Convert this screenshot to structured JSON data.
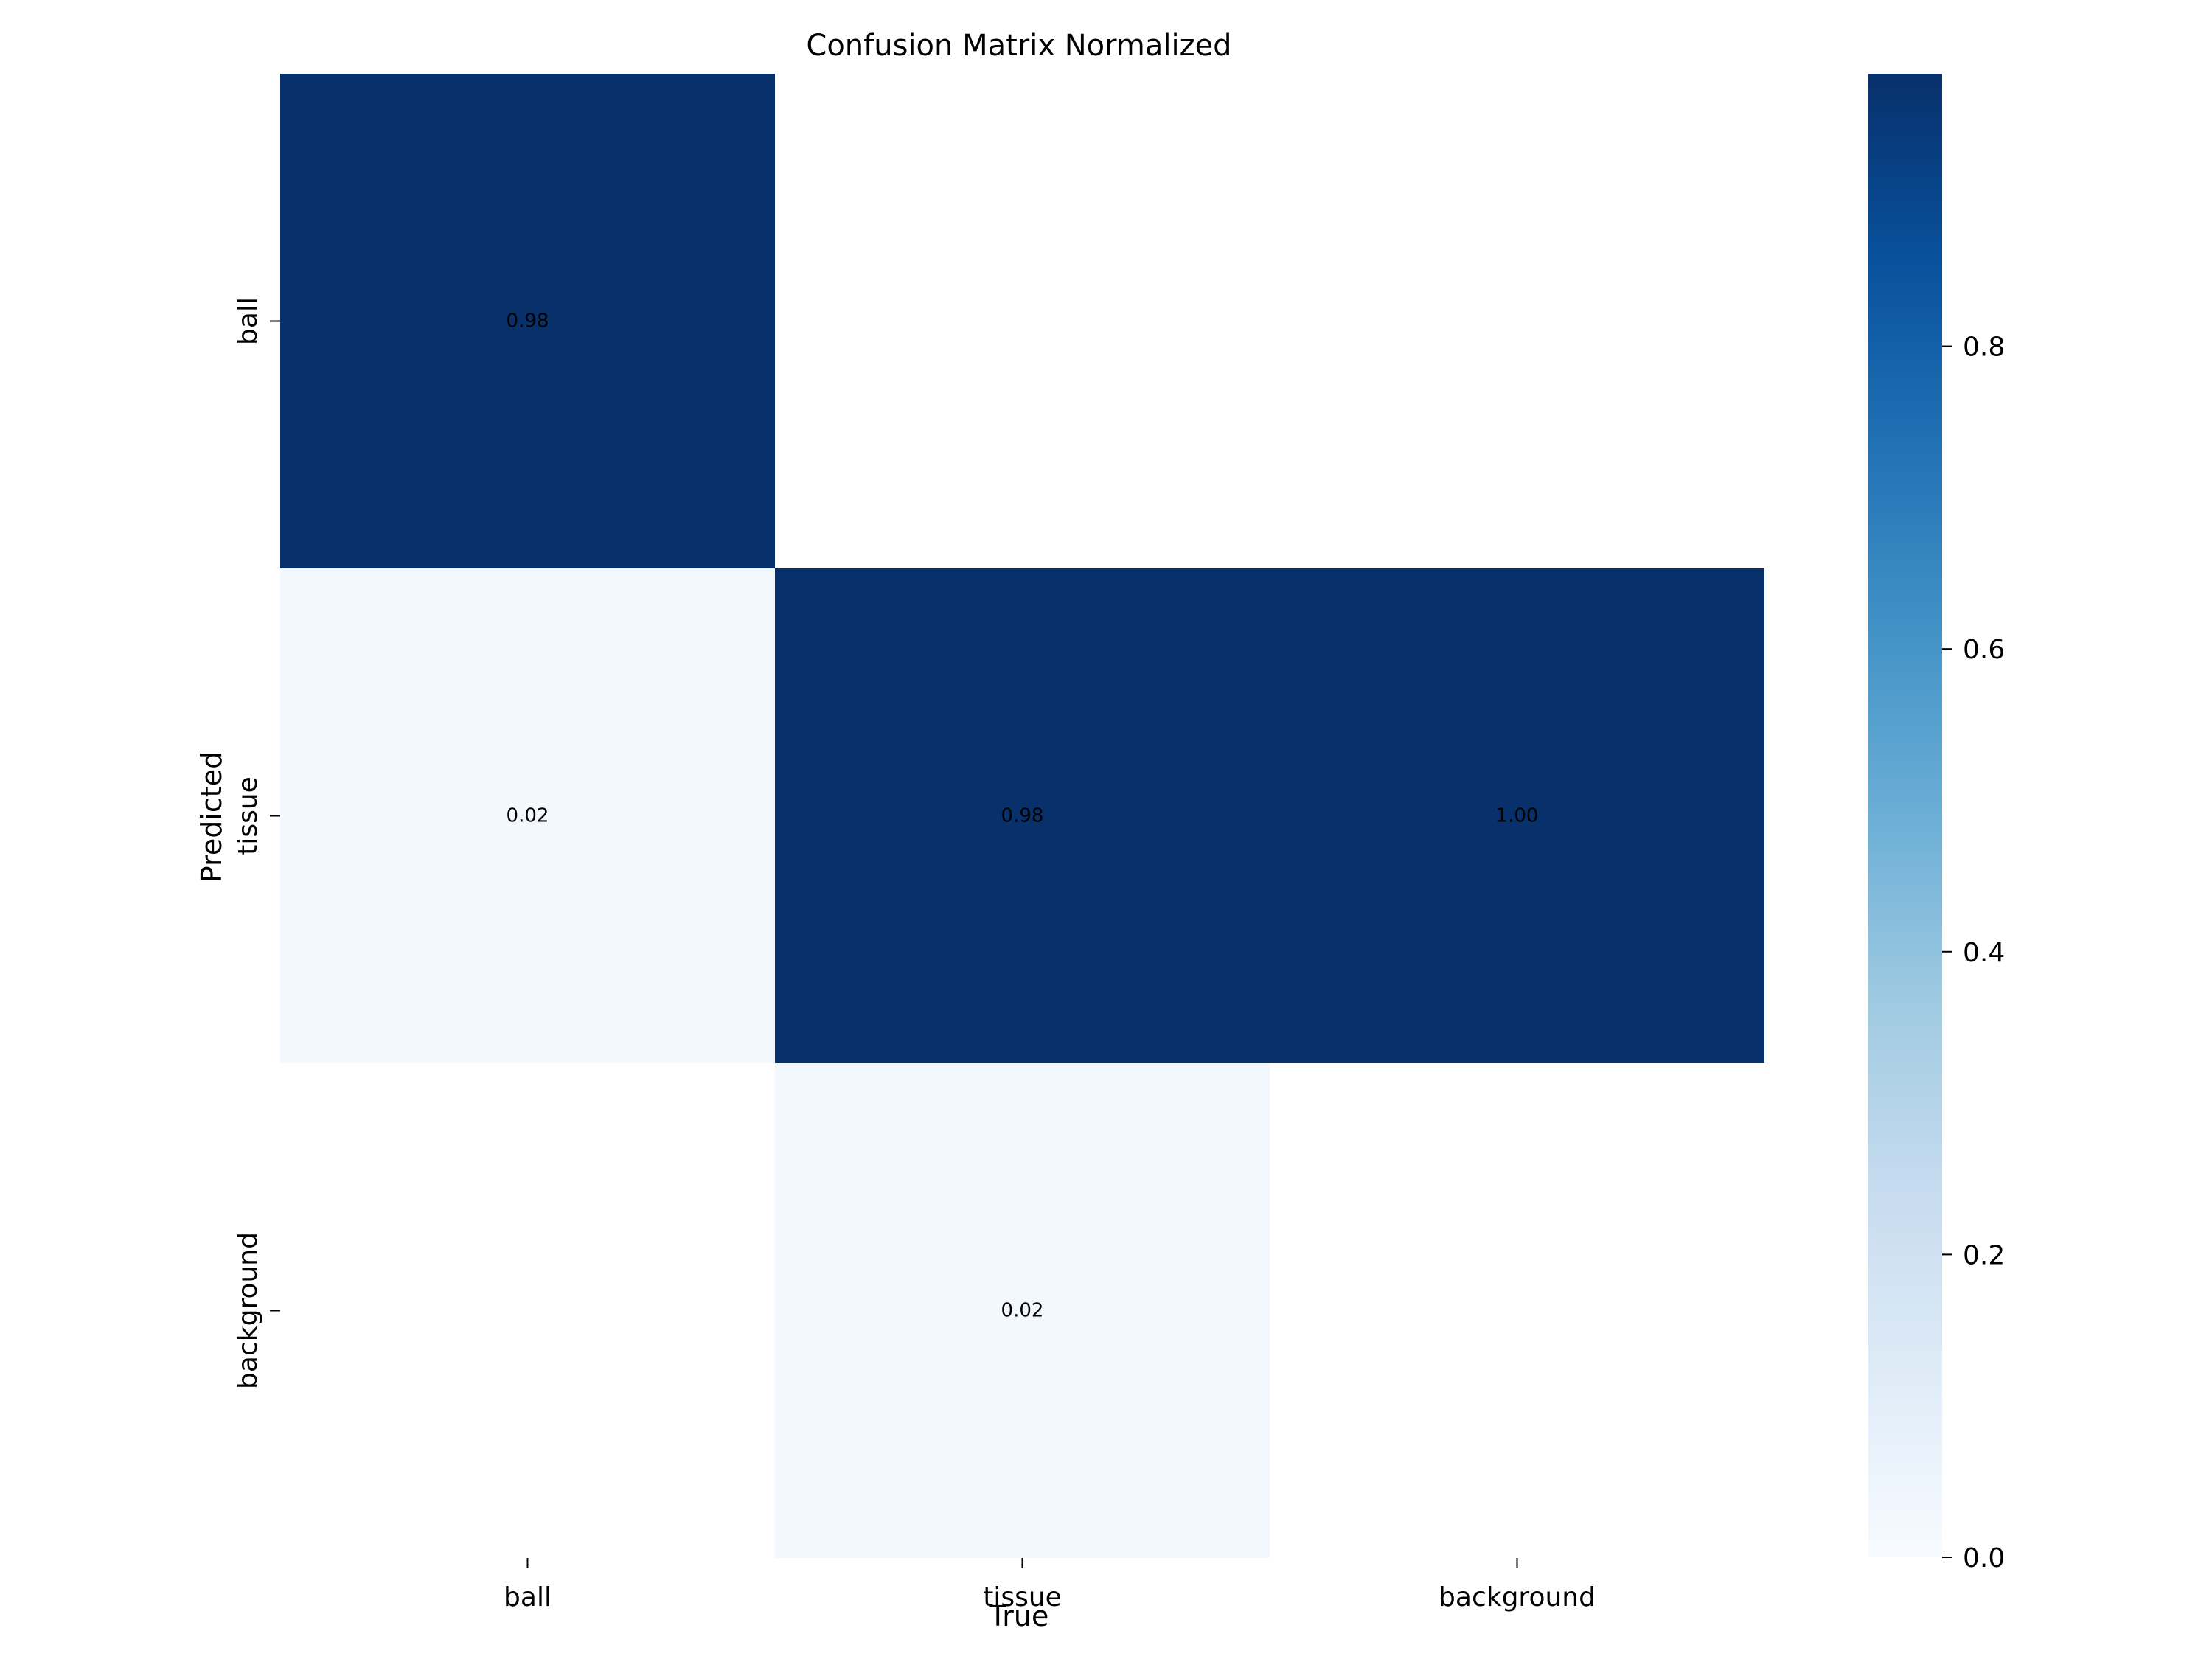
{
  "chart_data": {
    "type": "heatmap",
    "title": "Confusion Matrix Normalized",
    "xlabel": "True",
    "ylabel": "Predicted",
    "x_categories": [
      "ball",
      "tissue",
      "background"
    ],
    "y_categories": [
      "ball",
      "tissue",
      "background"
    ],
    "values": [
      [
        0.98,
        null,
        null
      ],
      [
        0.02,
        0.98,
        1.0
      ],
      [
        null,
        0.02,
        null
      ]
    ],
    "cell_labels": [
      [
        "0.98",
        "",
        ""
      ],
      [
        "0.02",
        "0.98",
        "1.00"
      ],
      [
        "",
        "0.02",
        ""
      ]
    ],
    "colormap": "Blues",
    "colorbar": {
      "range": [
        0,
        0.98
      ],
      "ticks": [
        0.0,
        0.2,
        0.4,
        0.6,
        0.8
      ],
      "tick_labels": [
        "0.0",
        "0.2",
        "0.4",
        "0.6",
        "0.8"
      ],
      "placement": "right"
    },
    "grid": false
  }
}
